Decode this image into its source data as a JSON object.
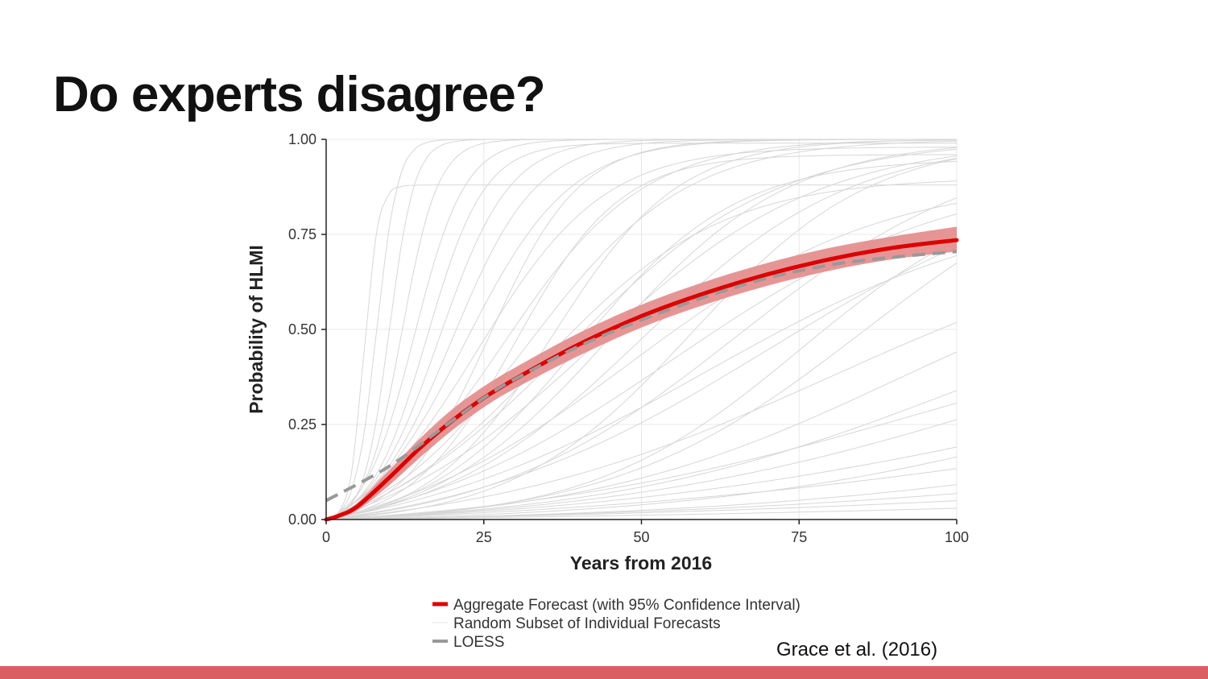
{
  "slide": {
    "title": "Do experts disagree?",
    "citation": "Grace et al. (2016)",
    "accent_color": "#d95f63"
  },
  "chart_data": {
    "type": "line",
    "title": "",
    "xlabel": "Years from 2016",
    "ylabel": "Probability of HLMI",
    "xlim": [
      0,
      100
    ],
    "ylim": [
      0,
      1
    ],
    "x_ticks": [
      0,
      25,
      50,
      75,
      100
    ],
    "y_ticks": [
      0,
      0.25,
      0.5,
      0.75,
      1.0
    ],
    "x_tick_labels": [
      "0",
      "25",
      "50",
      "75",
      "100"
    ],
    "y_tick_labels": [
      "0.00",
      "0.25",
      "0.50",
      "0.75",
      "1.00"
    ],
    "grid": true,
    "legend_position": "bottom",
    "series": [
      {
        "name": "Aggregate Forecast (with 95% Confidence Interval)",
        "color": "#dd0000",
        "band_color": "#e38989",
        "x": [
          0,
          2,
          5,
          10,
          15,
          20,
          25,
          30,
          40,
          50,
          60,
          70,
          80,
          90,
          100
        ],
        "values": [
          0.0,
          0.01,
          0.035,
          0.11,
          0.19,
          0.26,
          0.32,
          0.37,
          0.46,
          0.535,
          0.595,
          0.645,
          0.685,
          0.715,
          0.735
        ],
        "ci_lower": [
          0.0,
          0.005,
          0.025,
          0.09,
          0.165,
          0.235,
          0.295,
          0.345,
          0.43,
          0.505,
          0.565,
          0.615,
          0.655,
          0.685,
          0.705
        ],
        "ci_upper": [
          0.005,
          0.015,
          0.045,
          0.13,
          0.215,
          0.29,
          0.35,
          0.4,
          0.49,
          0.565,
          0.625,
          0.675,
          0.715,
          0.745,
          0.77
        ]
      },
      {
        "name": "LOESS",
        "color": "#999999",
        "style": "dashed",
        "x": [
          0,
          10,
          20,
          25,
          30,
          40,
          50,
          60,
          70,
          80,
          90,
          100
        ],
        "values": [
          0.05,
          0.14,
          0.26,
          0.32,
          0.37,
          0.455,
          0.525,
          0.585,
          0.635,
          0.67,
          0.69,
          0.705
        ]
      },
      {
        "name": "Random Subset of Individual Forecasts",
        "color": "#d6d6d6",
        "curves": [
          {
            "mid": 6,
            "k": 0.9,
            "a": 0.88
          },
          {
            "mid": 8,
            "k": 0.6,
            "a": 1.0
          },
          {
            "mid": 10,
            "k": 0.5,
            "a": 1.0
          },
          {
            "mid": 12,
            "k": 0.35,
            "a": 1.0
          },
          {
            "mid": 14,
            "k": 0.25,
            "a": 1.0
          },
          {
            "mid": 16,
            "k": 0.22,
            "a": 0.99
          },
          {
            "mid": 18,
            "k": 0.18,
            "a": 1.0
          },
          {
            "mid": 20,
            "k": 0.15,
            "a": 1.0
          },
          {
            "mid": 22,
            "k": 0.12,
            "a": 1.0
          },
          {
            "mid": 24,
            "k": 0.1,
            "a": 0.98
          },
          {
            "mid": 26,
            "k": 0.14,
            "a": 1.0
          },
          {
            "mid": 28,
            "k": 0.09,
            "a": 1.0
          },
          {
            "mid": 30,
            "k": 0.12,
            "a": 0.96
          },
          {
            "mid": 32,
            "k": 0.08,
            "a": 1.0
          },
          {
            "mid": 34,
            "k": 0.07,
            "a": 0.9
          },
          {
            "mid": 36,
            "k": 0.1,
            "a": 1.0
          },
          {
            "mid": 38,
            "k": 0.06,
            "a": 1.0
          },
          {
            "mid": 40,
            "k": 0.08,
            "a": 0.95
          },
          {
            "mid": 42,
            "k": 0.055,
            "a": 1.0
          },
          {
            "mid": 45,
            "k": 0.07,
            "a": 1.0
          },
          {
            "mid": 48,
            "k": 0.05,
            "a": 0.9
          },
          {
            "mid": 50,
            "k": 0.06,
            "a": 1.0
          },
          {
            "mid": 55,
            "k": 0.045,
            "a": 0.92
          },
          {
            "mid": 58,
            "k": 0.07,
            "a": 1.0
          },
          {
            "mid": 60,
            "k": 0.04,
            "a": 0.85
          },
          {
            "mid": 65,
            "k": 0.05,
            "a": 1.0
          },
          {
            "mid": 70,
            "k": 0.04,
            "a": 0.95
          },
          {
            "mid": 75,
            "k": 0.06,
            "a": 0.9
          },
          {
            "mid": 80,
            "k": 0.035,
            "a": 0.8
          },
          {
            "mid": 85,
            "k": 0.05,
            "a": 1.0
          },
          {
            "mid": 90,
            "k": 0.04,
            "a": 0.75
          },
          {
            "mid": 95,
            "k": 0.03,
            "a": 0.6
          },
          {
            "mid": 100,
            "k": 0.035,
            "a": 0.7
          },
          {
            "mid": 110,
            "k": 0.03,
            "a": 0.65
          },
          {
            "mid": 120,
            "k": 0.025,
            "a": 0.55
          },
          {
            "mid": 130,
            "k": 0.03,
            "a": 0.6
          },
          {
            "mid": 140,
            "k": 0.02,
            "a": 0.5
          },
          {
            "mid": 150,
            "k": 0.025,
            "a": 0.45
          },
          {
            "mid": 170,
            "k": 0.02,
            "a": 0.4
          },
          {
            "mid": 200,
            "k": 0.015,
            "a": 0.35
          },
          {
            "mid": 250,
            "k": 0.012,
            "a": 0.3
          }
        ]
      }
    ]
  }
}
